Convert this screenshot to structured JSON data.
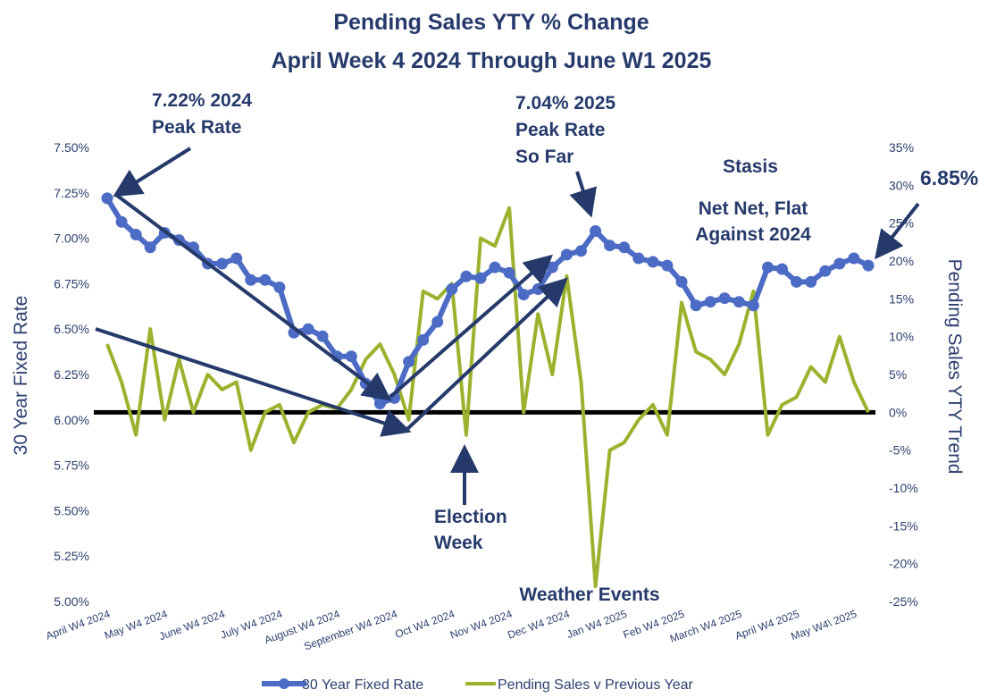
{
  "chart_data": {
    "type": "line",
    "title": "Pending Sales YTY % Change",
    "subtitle": "April Week 4 2024 Through June W1 2025",
    "left_axis": {
      "label": "30 Year Fixed Rate",
      "min": 5.0,
      "max": 7.5,
      "ticks": [
        "5.00%",
        "5.25%",
        "5.50%",
        "5.75%",
        "6.00%",
        "6.25%",
        "6.50%",
        "6.75%",
        "7.00%",
        "7.25%",
        "7.50%"
      ]
    },
    "right_axis": {
      "label": "Pending Sales YTY  Trend",
      "min": -25,
      "max": 35,
      "ticks": [
        "-25%",
        "-20%",
        "-15%",
        "-10%",
        "-5%",
        "0%",
        "5%",
        "10%",
        "15%",
        "20%",
        "25%",
        "30%",
        "35%"
      ]
    },
    "x_tick_labels": [
      "April W4 2024",
      "May W4 2024",
      "June W4 2024",
      "July W4 2024",
      "August W4 2024",
      "September W4 2024",
      "Oct W4 2024",
      "Nov W4 2024",
      "Dec W4 2024",
      "Jan W4 2025",
      "Feb W4 2025",
      "March W4 2025",
      "April W4 2025",
      "May W4\\ 2025"
    ],
    "series": [
      {
        "name": "30 Year Fixed Rate",
        "axis": "left",
        "color": "#4c6bc5",
        "values": [
          7.22,
          7.09,
          7.02,
          6.95,
          7.03,
          6.99,
          6.95,
          6.86,
          6.86,
          6.89,
          6.77,
          6.77,
          6.73,
          6.48,
          6.5,
          6.46,
          6.35,
          6.35,
          6.2,
          6.09,
          6.12,
          6.32,
          6.44,
          6.54,
          6.72,
          6.79,
          6.78,
          6.84,
          6.81,
          6.69,
          6.72,
          6.84,
          6.91,
          6.93,
          7.04,
          6.96,
          6.95,
          6.89,
          6.87,
          6.85,
          6.76,
          6.63,
          6.65,
          6.67,
          6.65,
          6.63,
          6.84,
          6.83,
          6.76,
          6.76,
          6.82,
          6.86,
          6.89,
          6.85
        ]
      },
      {
        "name": "Pending Sales v Previous Year",
        "axis": "right",
        "color": "#9cb22e",
        "values": [
          9,
          4,
          -3,
          11,
          -1,
          7,
          0,
          5,
          3,
          4,
          -5,
          0,
          1,
          -4,
          0,
          1,
          0.5,
          3,
          7,
          9,
          5,
          -1,
          16,
          15,
          17,
          -3,
          23,
          22,
          27,
          0,
          13,
          5,
          18,
          4,
          -23,
          -5,
          -4,
          -1,
          1,
          -3,
          14.5,
          8,
          7,
          5,
          9,
          16,
          -3,
          1,
          2,
          6,
          4,
          10,
          4,
          0
        ]
      }
    ],
    "annotations": {
      "peak_2024": [
        "7.22% 2024",
        "Peak Rate"
      ],
      "peak_2025": [
        "7.04% 2025",
        "Peak Rate",
        "So Far"
      ],
      "stasis": "Stasis",
      "net_net": [
        "Net Net, Flat",
        "Against 2024"
      ],
      "current_rate": "6.85%",
      "election_week": [
        "Election",
        "Week"
      ],
      "weather_events": "Weather Events"
    },
    "legend_position": "bottom"
  },
  "colors": {
    "rate_line": "#4c6bc5",
    "sales_line": "#9cb22e",
    "arrows": "#253a6b",
    "zero_line": "#000000",
    "text": "#253a6b"
  }
}
